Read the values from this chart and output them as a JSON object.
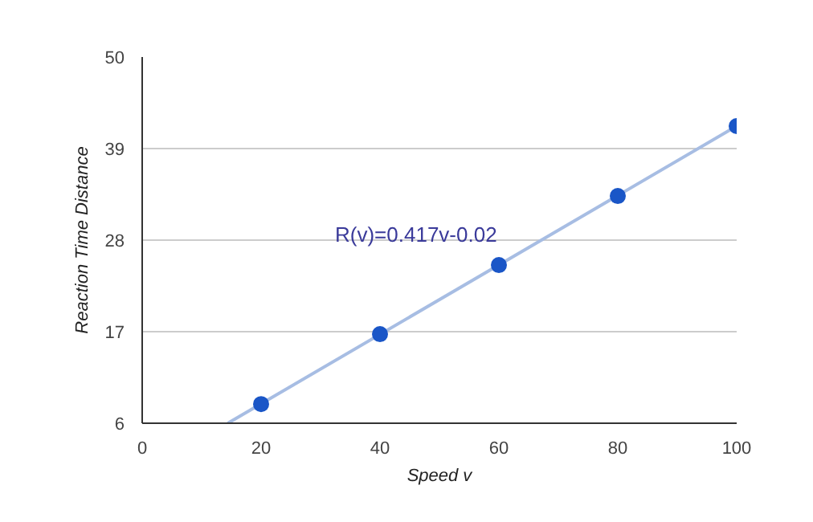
{
  "chart_data": {
    "type": "scatter",
    "xlabel": "Speed v",
    "ylabel": "Reaction Time Distance",
    "xlim": [
      0,
      100
    ],
    "xticks": [
      0,
      20,
      40,
      60,
      80,
      100
    ],
    "ylim": [
      6,
      50
    ],
    "yticks": [
      6,
      17,
      28,
      39,
      50
    ],
    "grid": "y",
    "series": [
      {
        "type": "line",
        "marker": "none",
        "color": "#a7bde3",
        "x": [
          14.4,
          100
        ],
        "values": [
          6,
          41.7
        ]
      },
      {
        "marker": "circle",
        "color": "#1a56c7",
        "x": [
          20,
          40,
          60,
          80,
          100
        ],
        "values": [
          8.3,
          16.7,
          25,
          33.3,
          41.7
        ]
      }
    ],
    "annotations": [
      "R(v)=0.417v-0.02"
    ]
  }
}
